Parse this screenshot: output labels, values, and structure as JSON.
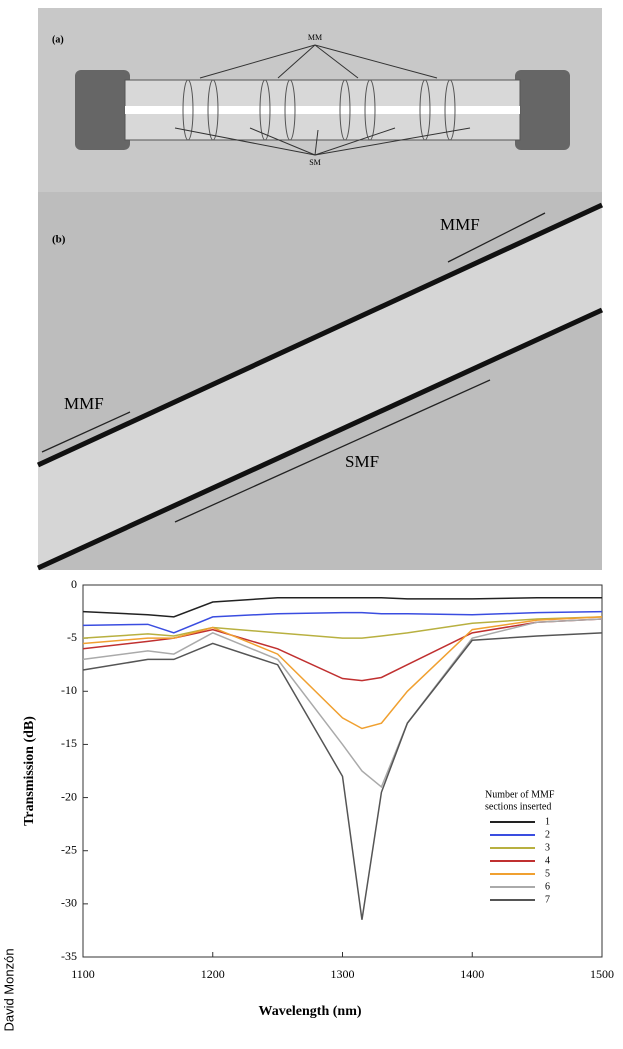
{
  "panel_a": {
    "label": "(a)",
    "top_label": "MM",
    "bottom_label": "SM"
  },
  "panel_b": {
    "label": "(b)",
    "mmf_top": "MMF",
    "mmf_left": "MMF",
    "smf": "SMF"
  },
  "credit": "David Monzón",
  "chart_data": {
    "type": "line",
    "x_label": "Wavelength (nm)",
    "y_label": "Transmission (dB)",
    "legend_title": [
      "Number of MMF",
      "sections inserted"
    ],
    "x": [
      1100,
      1150,
      1170,
      1200,
      1250,
      1300,
      1315,
      1330,
      1350,
      1400,
      1450,
      1500
    ],
    "xlim": [
      1100,
      1500
    ],
    "xticks": [
      1100,
      1200,
      1300,
      1400,
      1500
    ],
    "ylim": [
      -35,
      0
    ],
    "yticks": [
      0,
      -5,
      -10,
      -15,
      -20,
      -25,
      -30,
      -35
    ],
    "series": [
      {
        "name": "1",
        "color": "#222222",
        "values": [
          -2.5,
          -2.8,
          -3.0,
          -1.6,
          -1.2,
          -1.2,
          -1.2,
          -1.2,
          -1.3,
          -1.3,
          -1.2,
          -1.2
        ]
      },
      {
        "name": "2",
        "color": "#3a4de0",
        "values": [
          -3.8,
          -3.7,
          -4.5,
          -3.0,
          -2.7,
          -2.6,
          -2.6,
          -2.7,
          -2.7,
          -2.8,
          -2.6,
          -2.5
        ]
      },
      {
        "name": "3",
        "color": "#b8b040",
        "values": [
          -5.0,
          -4.6,
          -4.8,
          -4.0,
          -4.5,
          -5.0,
          -5.0,
          -4.8,
          -4.5,
          -3.6,
          -3.2,
          -3.0
        ]
      },
      {
        "name": "4",
        "color": "#c03030",
        "values": [
          -6.0,
          -5.3,
          -5.0,
          -4.2,
          -6.0,
          -8.8,
          -9.0,
          -8.7,
          -7.5,
          -4.5,
          -3.5,
          -3.2
        ]
      },
      {
        "name": "5",
        "color": "#f0a030",
        "values": [
          -5.5,
          -5.0,
          -5.0,
          -4.0,
          -6.5,
          -12.5,
          -13.5,
          -13.0,
          -10.0,
          -4.2,
          -3.3,
          -3.0
        ]
      },
      {
        "name": "6",
        "color": "#aaaaaa",
        "values": [
          -7.0,
          -6.2,
          -6.5,
          -4.5,
          -7.0,
          -15.0,
          -17.5,
          -19.0,
          -13.0,
          -5.0,
          -3.5,
          -3.2
        ]
      },
      {
        "name": "7",
        "color": "#555555",
        "values": [
          -8.0,
          -7.0,
          -7.0,
          -5.5,
          -7.5,
          -18.0,
          -31.5,
          -19.5,
          -13.0,
          -5.2,
          -4.8,
          -4.5
        ]
      }
    ]
  }
}
